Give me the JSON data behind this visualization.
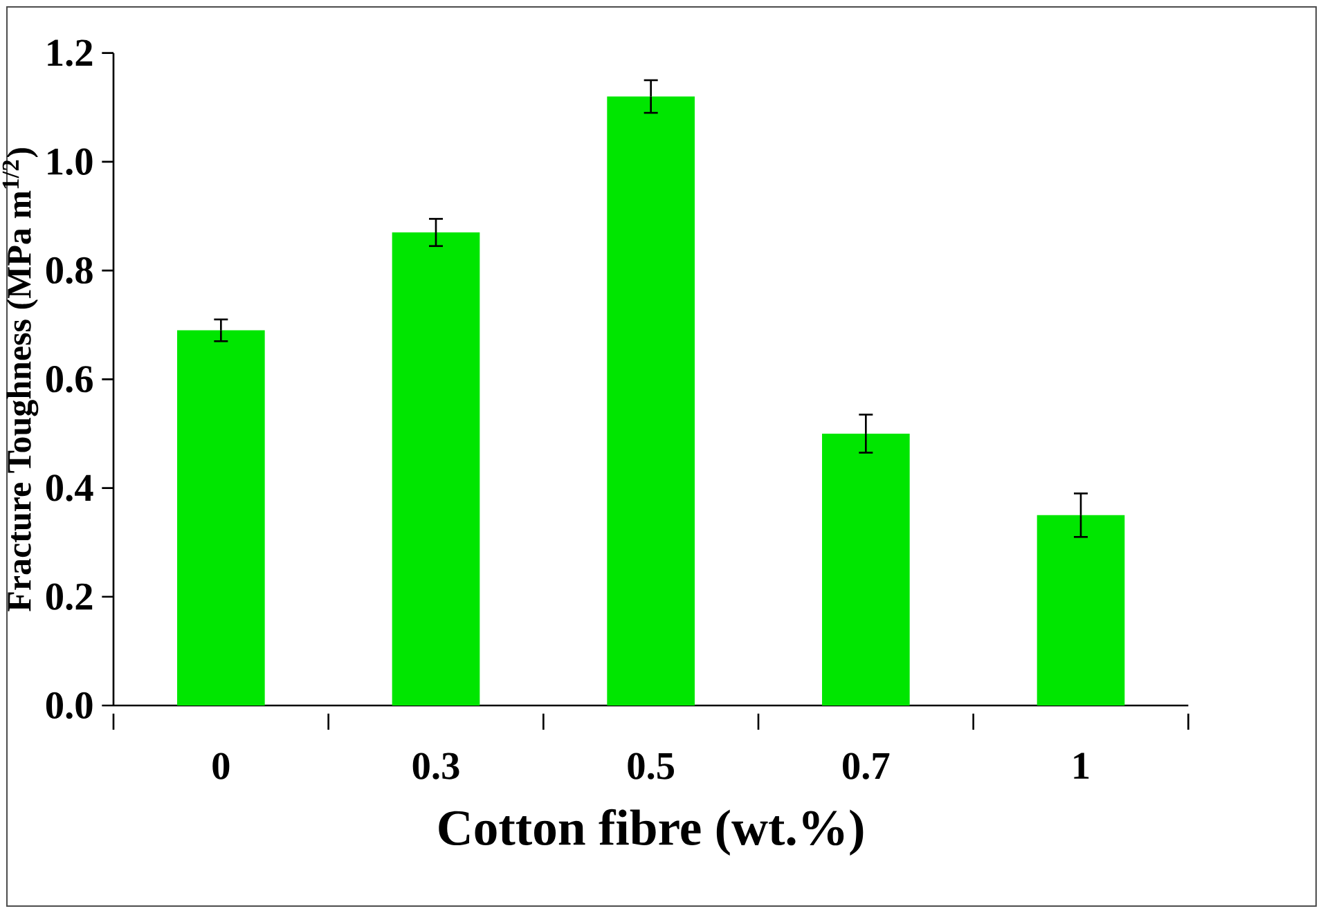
{
  "chart_data": {
    "type": "bar",
    "xlabel": "Cotton fibre (wt.%)",
    "ylabel": "Fracture Toughness (MPa m$^{1/2}$)",
    "categories": [
      "0",
      "0.3",
      "0.5",
      "0.7",
      "1"
    ],
    "values": [
      0.69,
      0.87,
      1.12,
      0.5,
      0.35
    ],
    "errors": [
      0.02,
      0.025,
      0.03,
      0.035,
      0.04
    ],
    "color": "#00e600",
    "ylim": [
      0,
      1.2
    ],
    "yticks": [
      {
        "value": 0,
        "label": "0.0"
      },
      {
        "value": 0.2,
        "label": "0.2"
      },
      {
        "value": 0.4,
        "label": "0.4"
      },
      {
        "value": 0.6,
        "label": "0.6"
      },
      {
        "value": 0.8,
        "label": "0.8"
      },
      {
        "value": 1.0,
        "label": "1.0"
      },
      {
        "value": 1.2,
        "label": "1.2"
      }
    ]
  }
}
